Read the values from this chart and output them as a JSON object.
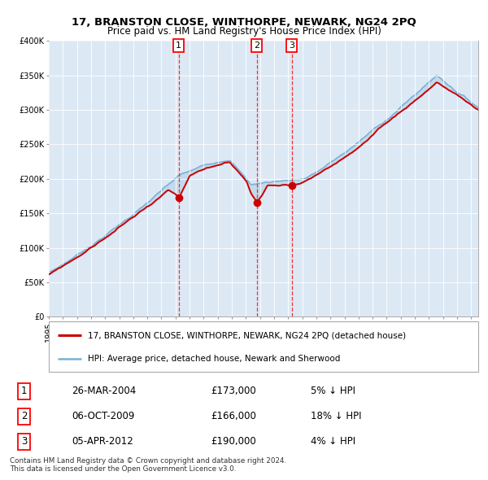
{
  "title": "17, BRANSTON CLOSE, WINTHORPE, NEWARK, NG24 2PQ",
  "subtitle": "Price paid vs. HM Land Registry's House Price Index (HPI)",
  "ylim": [
    0,
    400000
  ],
  "yticks": [
    0,
    50000,
    100000,
    150000,
    200000,
    250000,
    300000,
    350000,
    400000
  ],
  "ytick_labels": [
    "£0",
    "£50K",
    "£100K",
    "£150K",
    "£200K",
    "£250K",
    "£300K",
    "£350K",
    "£400K"
  ],
  "plot_bg_color": "#dce9f5",
  "sale_color": "#cc0000",
  "hpi_color": "#7ab0d4",
  "sale_linewidth": 1.4,
  "hpi_linewidth": 1.1,
  "vlines": [
    2004.23,
    2009.76,
    2012.26
  ],
  "sale_dates": [
    2004.23,
    2009.76,
    2012.26
  ],
  "sale_prices": [
    173000,
    166000,
    190000
  ],
  "legend_property_label": "17, BRANSTON CLOSE, WINTHORPE, NEWARK, NG24 2PQ (detached house)",
  "legend_hpi_label": "HPI: Average price, detached house, Newark and Sherwood",
  "table_rows": [
    [
      "1",
      "26-MAR-2004",
      "£173,000",
      "5% ↓ HPI"
    ],
    [
      "2",
      "06-OCT-2009",
      "£166,000",
      "18% ↓ HPI"
    ],
    [
      "3",
      "05-APR-2012",
      "£190,000",
      "4% ↓ HPI"
    ]
  ],
  "footer": "Contains HM Land Registry data © Crown copyright and database right 2024.\nThis data is licensed under the Open Government Licence v3.0.",
  "title_fontsize": 9.5,
  "subtitle_fontsize": 8.5,
  "tick_fontsize": 7,
  "legend_fontsize": 7.5,
  "table_fontsize": 8.5
}
